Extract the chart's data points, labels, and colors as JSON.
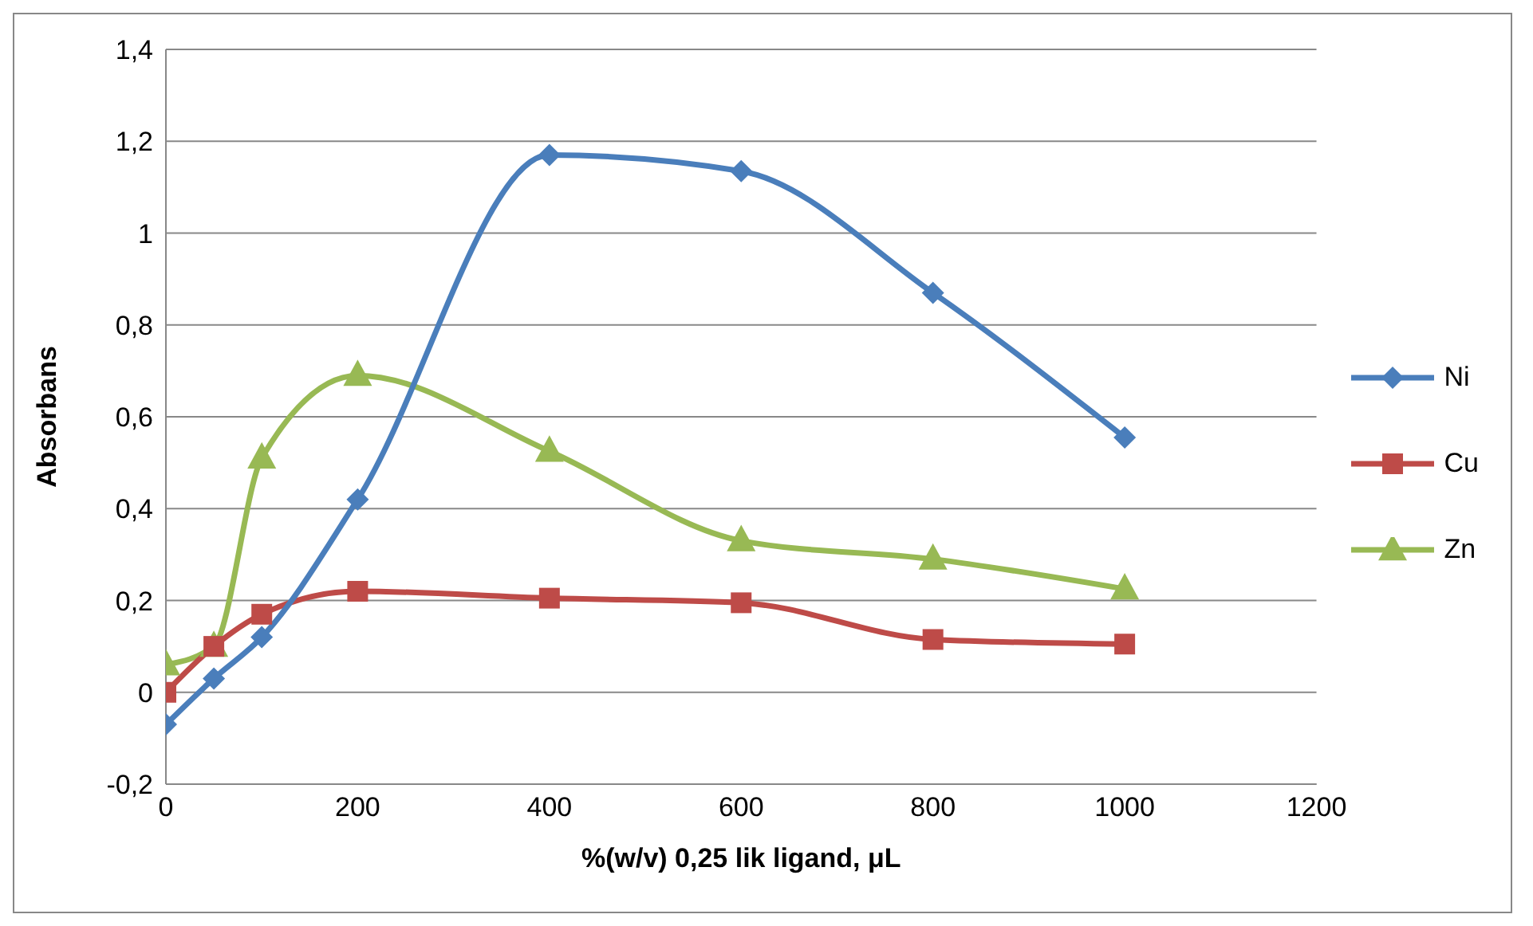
{
  "chart_data": {
    "type": "line",
    "xlabel": "%(w/v) 0,25 lik ligand, μL",
    "ylabel": "Absorbans",
    "x": [
      0,
      50,
      100,
      200,
      400,
      600,
      800,
      1000
    ],
    "series": [
      {
        "name": "Ni",
        "color": "#4a7ebb",
        "marker": "diamond",
        "values": [
          -0.07,
          0.03,
          0.12,
          0.42,
          1.17,
          1.135,
          0.87,
          0.555
        ]
      },
      {
        "name": "Cu",
        "color": "#be4b48",
        "marker": "square",
        "values": [
          0,
          0.1,
          0.17,
          0.22,
          0.205,
          0.195,
          0.115,
          0.105
        ]
      },
      {
        "name": "Zn",
        "color": "#98b954",
        "marker": "triangle",
        "values": [
          0.06,
          0.1,
          0.51,
          0.69,
          0.525,
          0.33,
          0.29,
          0.225
        ]
      }
    ],
    "xlim": [
      0,
      1200
    ],
    "xticks": [
      0,
      200,
      400,
      600,
      800,
      1000,
      1200
    ],
    "ylim": [
      -0.2,
      1.4
    ],
    "yticks": [
      {
        "value": -0.2,
        "label": "-0,2"
      },
      0,
      {
        "value": 0.2,
        "label": "0,2"
      },
      {
        "value": 0.4,
        "label": "0,4"
      },
      {
        "value": 0.6,
        "label": "0,6"
      },
      {
        "value": 0.8,
        "label": "0,8"
      },
      1,
      {
        "value": 1.2,
        "label": "1,2"
      },
      {
        "value": 1.4,
        "label": "1,4"
      }
    ],
    "grid": "y",
    "legend": "right",
    "line_style": "solid"
  }
}
